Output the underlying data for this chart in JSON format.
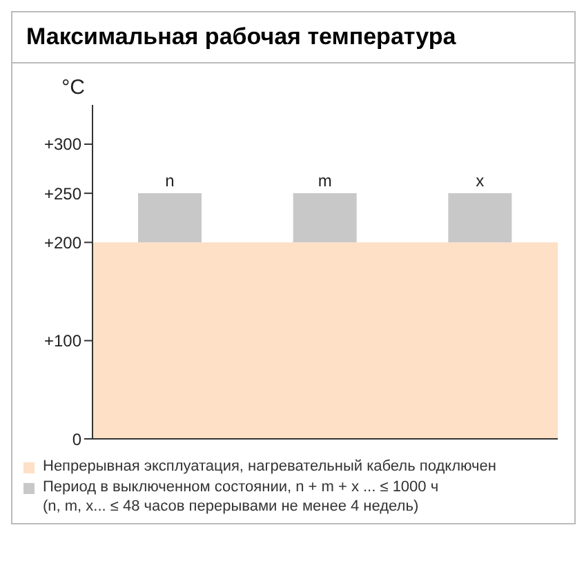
{
  "chart_data": {
    "type": "bar",
    "title": "Максимальная рабочая температура",
    "ylabel": "°C",
    "categories": [
      "n",
      "m",
      "x"
    ],
    "series": [
      {
        "name": "Период в выключенном состоянии, n + m + x ... ≤ 1000 ч",
        "color": "#c8c8c8",
        "values": [
          50,
          50,
          50
        ],
        "base": [
          200,
          200,
          200
        ]
      }
    ],
    "ylim": [
      0,
      340
    ],
    "yticks": [
      0,
      {
        "value": 100,
        "label": "+100"
      },
      {
        "value": 200,
        "label": "+200"
      },
      {
        "value": 250,
        "label": "+250"
      },
      {
        "value": 300,
        "label": "+300"
      }
    ],
    "bands": [
      {
        "axis": "y",
        "from": 0,
        "to": 200,
        "label": "Непрерывная эксплуатация, нагревательный кабель подключен",
        "color": "#fde0c6"
      }
    ],
    "annotations": [
      "(n, m, x... ≤ 48 часов перерывами не менее 4 недель)"
    ],
    "grid": false,
    "legend": "bottom"
  }
}
